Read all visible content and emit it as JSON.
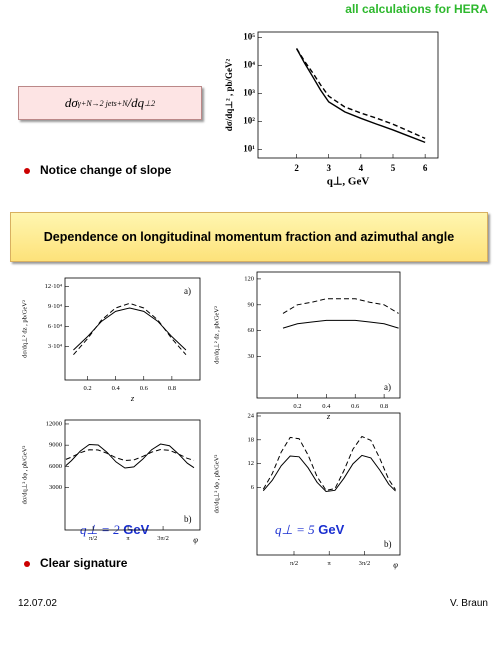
{
  "header": "all calculations for HERA",
  "formula": {
    "main": "dσ",
    "sub": "γ+N→2 jets+N",
    "rest": "/dq",
    "sub2": "⊥",
    "sup": "2"
  },
  "bullets": [
    "Notice change of slope",
    "Clear signature"
  ],
  "box_title": "Dependence on longitudinal momentum fraction and azimuthal angle",
  "captions": [
    {
      "var": "q⊥ = 2",
      "unit": "GeV"
    },
    {
      "var": "q⊥ = 5",
      "unit": "GeV"
    }
  ],
  "footer": {
    "date": "12.07.02",
    "author": "V. Braun"
  },
  "chart_data": [
    {
      "type": "line",
      "log": true,
      "x_label": "q⊥, GeV",
      "y_label": "dσ/dq⊥² , pb/GeV²",
      "x": [
        2,
        2.25,
        2.5,
        2.75,
        3,
        3.5,
        4,
        4.5,
        5,
        5.5,
        6
      ],
      "series": [
        {
          "color": "#000000",
          "dash": false,
          "values": [
            40000,
            12000,
            4000,
            1300,
            500,
            220,
            130,
            80,
            50,
            30,
            18
          ]
        },
        {
          "color": "#000000",
          "dash": true,
          "values": [
            40000,
            14000,
            5500,
            2000,
            800,
            330,
            200,
            130,
            80,
            45,
            25
          ]
        }
      ],
      "xlim": [
        0.8,
        6.4
      ],
      "xticks": [
        2,
        3,
        4,
        5,
        6
      ],
      "ylim": [
        5,
        155000
      ],
      "yticks": [
        {
          "value": 10,
          "label": "10¹"
        },
        {
          "value": 100,
          "label": "10²"
        },
        {
          "value": 1000,
          "label": "10³"
        },
        {
          "value": 10000,
          "label": "10⁴"
        },
        {
          "value": 100000,
          "label": "10⁵"
        }
      ]
    },
    {
      "type": "line",
      "log": false,
      "x_label": "z",
      "y_label": "dσ/dq⊥² dz , pb/GeV²",
      "panel_label": "a)",
      "x": [
        0.1,
        0.2,
        0.3,
        0.4,
        0.5,
        0.6,
        0.7,
        0.8,
        0.9
      ],
      "series": [
        {
          "color": "#000000",
          "dash": false,
          "values": [
            25000,
            45000,
            68000,
            83000,
            88000,
            83000,
            68000,
            45000,
            25000
          ]
        },
        {
          "color": "#000000",
          "dash": true,
          "values": [
            18000,
            42000,
            70000,
            88000,
            95000,
            88000,
            70000,
            42000,
            18000
          ]
        }
      ],
      "xlim": [
        0.04,
        1.0
      ],
      "xticks": [
        0.2,
        0.4,
        0.6,
        0.8
      ],
      "ylim": [
        -20000,
        133000
      ],
      "yticks": [
        {
          "value": 30000,
          "label": "3·10⁴"
        },
        {
          "value": 60000,
          "label": "6·10⁴"
        },
        {
          "value": 90000,
          "label": "9·10⁴"
        },
        {
          "value": 120000,
          "label": "12·10⁴"
        }
      ]
    },
    {
      "type": "line",
      "log": false,
      "x_label": "z",
      "y_label": "dσ/dq⊥² dz , pb/GeV²",
      "panel_label": "a)",
      "x": [
        0.1,
        0.2,
        0.3,
        0.4,
        0.5,
        0.6,
        0.7,
        0.8,
        0.9
      ],
      "series": [
        {
          "color": "#000000",
          "dash": false,
          "values": [
            63,
            68,
            70,
            72,
            72,
            72,
            70,
            68,
            63
          ]
        },
        {
          "color": "#000000",
          "dash": true,
          "values": [
            80,
            90,
            93,
            97,
            97,
            97,
            93,
            90,
            80
          ]
        }
      ],
      "xlim": [
        -0.08,
        0.91
      ],
      "xticks": [
        0.2,
        0.4,
        0.6,
        0.8
      ],
      "ylim": [
        -18,
        128
      ],
      "yticks": [
        30,
        60,
        90,
        120
      ]
    },
    {
      "type": "line",
      "log": false,
      "x_label": "φ",
      "y_label": "dσ/dq⊥² dφ , pb/GeV²",
      "panel_label": "b)",
      "x": [
        0.35,
        0.6,
        1.0,
        1.4,
        1.8,
        2.2,
        2.6,
        3.0,
        3.4,
        3.8,
        4.2,
        4.6,
        5.0,
        5.4,
        5.8,
        6.1
      ],
      "series": [
        {
          "color": "#000000",
          "dash": false,
          "values": [
            6111,
            6817,
            8178,
            9099,
            9020,
            7987,
            6629,
            5770,
            5929,
            7020,
            8358,
            9156,
            8918,
            7774,
            6446,
            5812
          ]
        },
        {
          "color": "#000000",
          "dash": true,
          "values": [
            6988,
            7310,
            7933,
            8354,
            8318,
            7846,
            7225,
            6832,
            6905,
            7403,
            8015,
            8380,
            8271,
            7748,
            7141,
            6851
          ]
        }
      ],
      "xlim": [
        0.31,
        6.37
      ],
      "xticks": [
        {
          "value": 1.5708,
          "label": "π/2"
        },
        {
          "value": 3.1416,
          "label": "π"
        },
        {
          "value": 4.7124,
          "label": "3π/2"
        }
      ],
      "ylim": [
        -3000,
        12560
      ],
      "yticks": [
        3000,
        6000,
        9000,
        12000
      ]
    },
    {
      "type": "line",
      "log": false,
      "x_label": "φ",
      "y_label": "dσ/dq⊥² dφ , pb/GeV²",
      "panel_label": "b)",
      "x": [
        0.2,
        0.6,
        1.0,
        1.4,
        1.8,
        2.2,
        2.6,
        3.0,
        3.4,
        3.8,
        4.2,
        4.6,
        5.0,
        5.4,
        5.8,
        6.1
      ],
      "series": [
        {
          "color": "#000000",
          "dash": false,
          "values": [
            5.17,
            7.8,
            11.46,
            13.93,
            13.72,
            10.94,
            7.3,
            4.99,
            5.28,
            8.34,
            11.94,
            14.08,
            13.44,
            10.37,
            6.8,
            5.1
          ]
        },
        {
          "color": "#000000",
          "dash": true,
          "values": [
            5.55,
            9.47,
            14.91,
            18.6,
            18.28,
            14.15,
            8.72,
            5.28,
            5.72,
            10.28,
            15.63,
            18.83,
            17.87,
            13.3,
            7.98,
            5.45
          ]
        }
      ],
      "xlim": [
        -0.08,
        6.3
      ],
      "xticks": [
        {
          "value": 1.5708,
          "label": "π/2"
        },
        {
          "value": 3.1416,
          "label": "π"
        },
        {
          "value": 4.7124,
          "label": "3π/2"
        }
      ],
      "ylim": [
        -11,
        24.75
      ],
      "yticks": [
        6,
        12,
        18,
        24
      ]
    }
  ]
}
